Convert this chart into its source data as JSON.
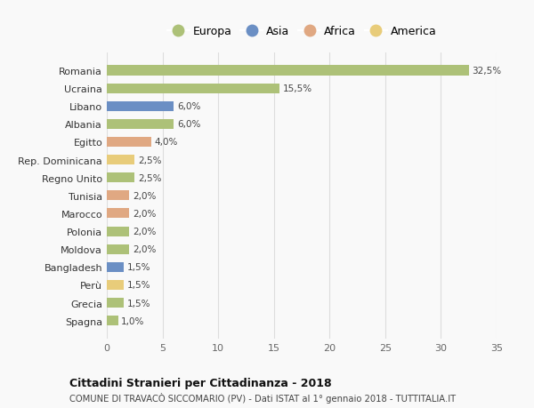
{
  "countries": [
    "Romania",
    "Ucraina",
    "Libano",
    "Albania",
    "Egitto",
    "Rep. Dominicana",
    "Regno Unito",
    "Tunisia",
    "Marocco",
    "Polonia",
    "Moldova",
    "Bangladesh",
    "Perù",
    "Grecia",
    "Spagna"
  ],
  "values": [
    32.5,
    15.5,
    6.0,
    6.0,
    4.0,
    2.5,
    2.5,
    2.0,
    2.0,
    2.0,
    2.0,
    1.5,
    1.5,
    1.5,
    1.0
  ],
  "categories": [
    "Europa",
    "Europa",
    "Asia",
    "Europa",
    "Africa",
    "America",
    "Europa",
    "Africa",
    "Africa",
    "Europa",
    "Europa",
    "Asia",
    "America",
    "Europa",
    "Europa"
  ],
  "labels": [
    "32,5%",
    "15,5%",
    "6,0%",
    "6,0%",
    "4,0%",
    "2,5%",
    "2,5%",
    "2,0%",
    "2,0%",
    "2,0%",
    "2,0%",
    "1,5%",
    "1,5%",
    "1,5%",
    "1,0%"
  ],
  "colors": {
    "Europa": "#adc178",
    "Asia": "#6b8fc4",
    "Africa": "#e0a882",
    "America": "#e8cc7a"
  },
  "legend_order": [
    "Europa",
    "Asia",
    "Africa",
    "America"
  ],
  "xlim": [
    0,
    35
  ],
  "xticks": [
    0,
    5,
    10,
    15,
    20,
    25,
    30,
    35
  ],
  "title": "Cittadini Stranieri per Cittadinanza - 2018",
  "subtitle": "COMUNE DI TRAVACÒ SICCOMARIO (PV) - Dati ISTAT al 1° gennaio 2018 - TUTTITALIA.IT",
  "background_color": "#f9f9f9",
  "grid_color": "#dddddd",
  "bar_height": 0.55
}
